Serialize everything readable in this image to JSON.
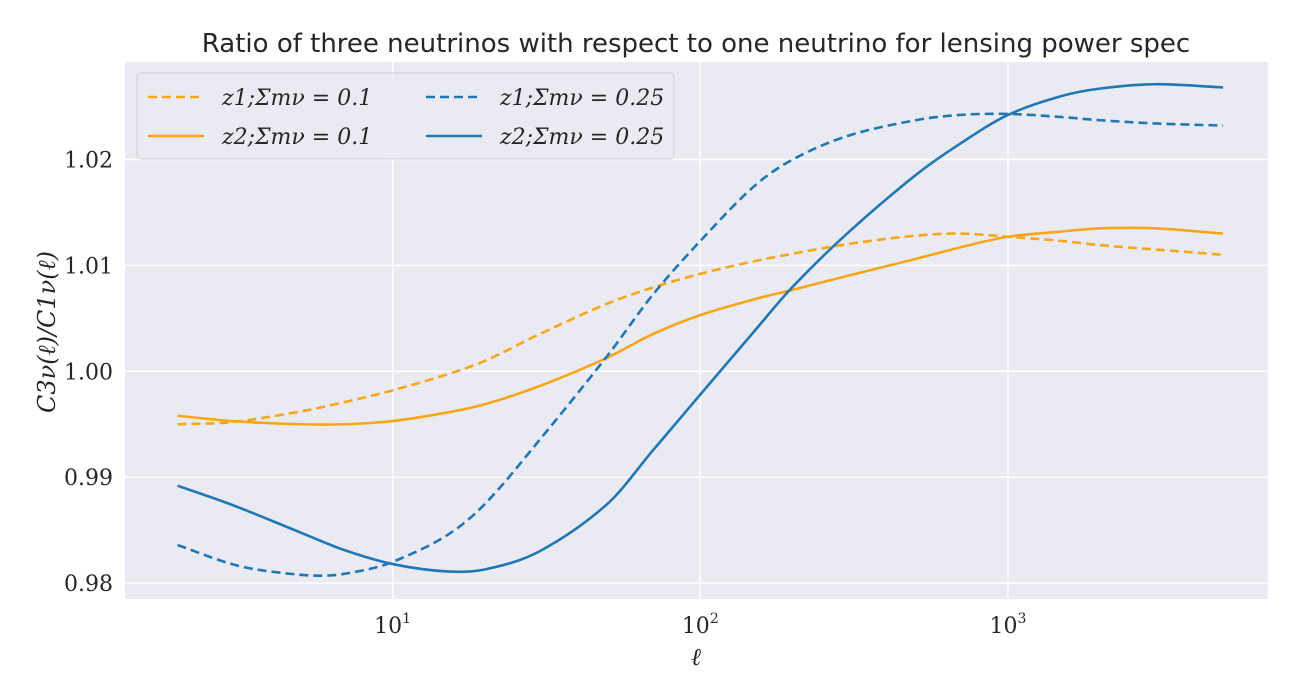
{
  "chart_data": {
    "type": "line",
    "title": "Ratio of three neutrinos with respect to one neutrino for lensing power spec",
    "xlabel": "ℓ",
    "ylabel": "C3ν(ℓ)/C1ν(ℓ)",
    "xscale": "log",
    "xlim": [
      1.35,
      7000
    ],
    "ylim": [
      0.9785,
      1.0292
    ],
    "grid": true,
    "legend_position": "upper-left",
    "legend_columns": 2,
    "x_ticks": [
      {
        "base": "10",
        "exp": "1",
        "value": 10
      },
      {
        "base": "10",
        "exp": "2",
        "value": 100
      },
      {
        "base": "10",
        "exp": "3",
        "value": 1000
      }
    ],
    "y_ticks": [
      {
        "label": "0.98",
        "value": 0.98
      },
      {
        "label": "0.99",
        "value": 0.99
      },
      {
        "label": "1.00",
        "value": 1.0
      },
      {
        "label": "1.01",
        "value": 1.01
      },
      {
        "label": "1.02",
        "value": 1.02
      }
    ],
    "series": [
      {
        "name": "z1;Σmν = 0.1",
        "color": "#f9a51b",
        "dash": true,
        "points": [
          [
            2,
            0.995
          ],
          [
            3,
            0.9952
          ],
          [
            5,
            0.9962
          ],
          [
            7,
            0.9971
          ],
          [
            10,
            0.9982
          ],
          [
            15,
            0.9997
          ],
          [
            20,
            1.001
          ],
          [
            30,
            1.0035
          ],
          [
            50,
            1.0064
          ],
          [
            70,
            1.0079
          ],
          [
            100,
            1.0092
          ],
          [
            150,
            1.0104
          ],
          [
            200,
            1.0111
          ],
          [
            300,
            1.012
          ],
          [
            500,
            1.0128
          ],
          [
            700,
            1.013
          ],
          [
            1000,
            1.0127
          ],
          [
            1500,
            1.0123
          ],
          [
            2000,
            1.0119
          ],
          [
            3000,
            1.0115
          ],
          [
            5000,
            1.011
          ]
        ]
      },
      {
        "name": "z2;Σmν = 0.1",
        "color": "#f9a51b",
        "dash": false,
        "points": [
          [
            2,
            0.9958
          ],
          [
            3,
            0.9953
          ],
          [
            5,
            0.995
          ],
          [
            7,
            0.995
          ],
          [
            10,
            0.9953
          ],
          [
            15,
            0.9961
          ],
          [
            20,
            0.9969
          ],
          [
            30,
            0.9986
          ],
          [
            50,
            1.0013
          ],
          [
            70,
            1.0035
          ],
          [
            100,
            1.0053
          ],
          [
            150,
            1.0068
          ],
          [
            200,
            1.0077
          ],
          [
            300,
            1.009
          ],
          [
            500,
            1.0106
          ],
          [
            700,
            1.0117
          ],
          [
            1000,
            1.0127
          ],
          [
            1500,
            1.0132
          ],
          [
            2000,
            1.0135
          ],
          [
            3000,
            1.0135
          ],
          [
            5000,
            1.013
          ]
        ]
      },
      {
        "name": "z1;Σmν = 0.25",
        "color": "#1f77b4",
        "dash": true,
        "points": [
          [
            2,
            0.9836
          ],
          [
            3,
            0.9818
          ],
          [
            4,
            0.9811
          ],
          [
            6,
            0.9807
          ],
          [
            8,
            0.9812
          ],
          [
            10,
            0.982
          ],
          [
            15,
            0.9845
          ],
          [
            20,
            0.9875
          ],
          [
            30,
            0.9935
          ],
          [
            50,
            1.0015
          ],
          [
            70,
            1.0072
          ],
          [
            100,
            1.0123
          ],
          [
            150,
            1.0175
          ],
          [
            200,
            1.02
          ],
          [
            300,
            1.0222
          ],
          [
            500,
            1.0237
          ],
          [
            700,
            1.0242
          ],
          [
            1000,
            1.0243
          ],
          [
            1500,
            1.024
          ],
          [
            2000,
            1.0237
          ],
          [
            3000,
            1.0234
          ],
          [
            5000,
            1.0232
          ]
        ]
      },
      {
        "name": "z2;Σmν = 0.25",
        "color": "#1f77b4",
        "dash": false,
        "points": [
          [
            2,
            0.9892
          ],
          [
            3,
            0.9874
          ],
          [
            5,
            0.9848
          ],
          [
            7,
            0.9831
          ],
          [
            10,
            0.9818
          ],
          [
            15,
            0.9811
          ],
          [
            20,
            0.9813
          ],
          [
            30,
            0.983
          ],
          [
            50,
            0.9875
          ],
          [
            70,
            0.9925
          ],
          [
            100,
            0.9978
          ],
          [
            150,
            1.0038
          ],
          [
            200,
            1.008
          ],
          [
            300,
            1.013
          ],
          [
            500,
            1.0185
          ],
          [
            700,
            1.0215
          ],
          [
            1000,
            1.0242
          ],
          [
            1500,
            1.026
          ],
          [
            2000,
            1.0267
          ],
          [
            3000,
            1.0271
          ],
          [
            5000,
            1.0268
          ]
        ]
      }
    ]
  }
}
